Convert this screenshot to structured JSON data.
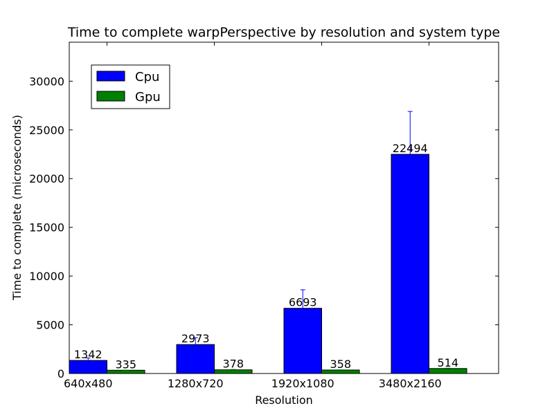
{
  "chart_data": {
    "type": "bar",
    "title": "Time to complete warpPerspective by resolution and system type",
    "xlabel": "Resolution",
    "ylabel": "Time to complete (microseconds)",
    "categories": [
      "640x480",
      "1280x720",
      "1920x1080",
      "3480x2160"
    ],
    "ylim": [
      0,
      34000
    ],
    "yticks": [
      0,
      5000,
      10000,
      15000,
      20000,
      25000,
      30000
    ],
    "grid": false,
    "legend_position": "top-left",
    "series": [
      {
        "name": "Cpu",
        "color": "#0000ff",
        "values": [
          1342,
          2973,
          6693,
          22494
        ],
        "errors": [
          250,
          700,
          1900,
          4400
        ]
      },
      {
        "name": "Gpu",
        "color": "#008000",
        "values": [
          335,
          378,
          358,
          514
        ],
        "errors": [
          20,
          40,
          25,
          40
        ]
      }
    ]
  }
}
